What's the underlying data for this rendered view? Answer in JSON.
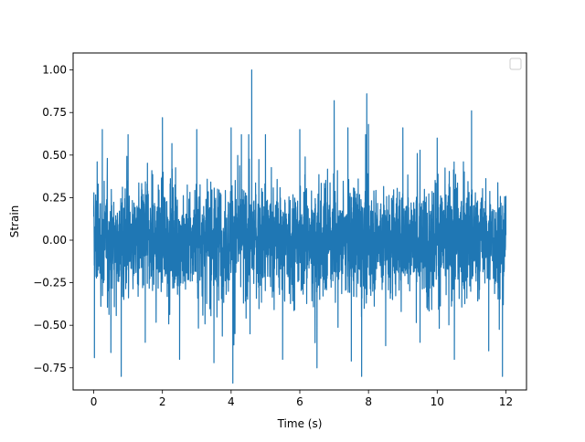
{
  "chart_data": {
    "type": "line",
    "title": "",
    "xlabel": "Time (s)",
    "ylabel": "Strain",
    "xlim": [
      -0.6,
      12.6
    ],
    "ylim": [
      -0.88,
      1.1
    ],
    "xticks": [
      0,
      2,
      4,
      6,
      8,
      10,
      12
    ],
    "xtick_labels": [
      "0",
      "2",
      "4",
      "6",
      "8",
      "10",
      "12"
    ],
    "yticks": [
      -0.75,
      -0.5,
      -0.25,
      0.0,
      0.25,
      0.5,
      0.75,
      1.0
    ],
    "ytick_labels": [
      "−0.75",
      "−0.50",
      "−0.25",
      "0.00",
      "0.25",
      "0.50",
      "0.75",
      "1.00"
    ],
    "grid": false,
    "legend": {
      "placement": "upper right",
      "entries": []
    },
    "series": [
      {
        "color": "#1f77b4",
        "x_range": [
          0,
          12
        ],
        "x": [
          0.0,
          0.02,
          0.1,
          0.25,
          0.5,
          0.8,
          1.0,
          1.5,
          2.0,
          2.5,
          3.0,
          3.5,
          4.0,
          4.05,
          4.3,
          4.55,
          4.6,
          5.0,
          5.5,
          6.0,
          6.5,
          7.0,
          7.4,
          7.5,
          7.8,
          7.95,
          8.0,
          8.5,
          9.0,
          9.5,
          10.0,
          10.5,
          11.0,
          11.5,
          11.9,
          12.0
        ],
        "y": [
          0.14,
          -0.69,
          0.46,
          0.65,
          -0.66,
          -0.8,
          0.62,
          -0.6,
          0.72,
          -0.7,
          0.65,
          -0.72,
          0.66,
          -0.84,
          0.62,
          -0.55,
          1.0,
          0.62,
          -0.7,
          0.65,
          -0.75,
          0.82,
          0.66,
          -0.71,
          -0.8,
          0.86,
          0.68,
          -0.62,
          0.66,
          -0.6,
          0.6,
          -0.7,
          0.76,
          -0.65,
          -0.8,
          0.26
        ],
        "amplitude_envelope": [
          -0.84,
          1.0
        ]
      }
    ]
  }
}
